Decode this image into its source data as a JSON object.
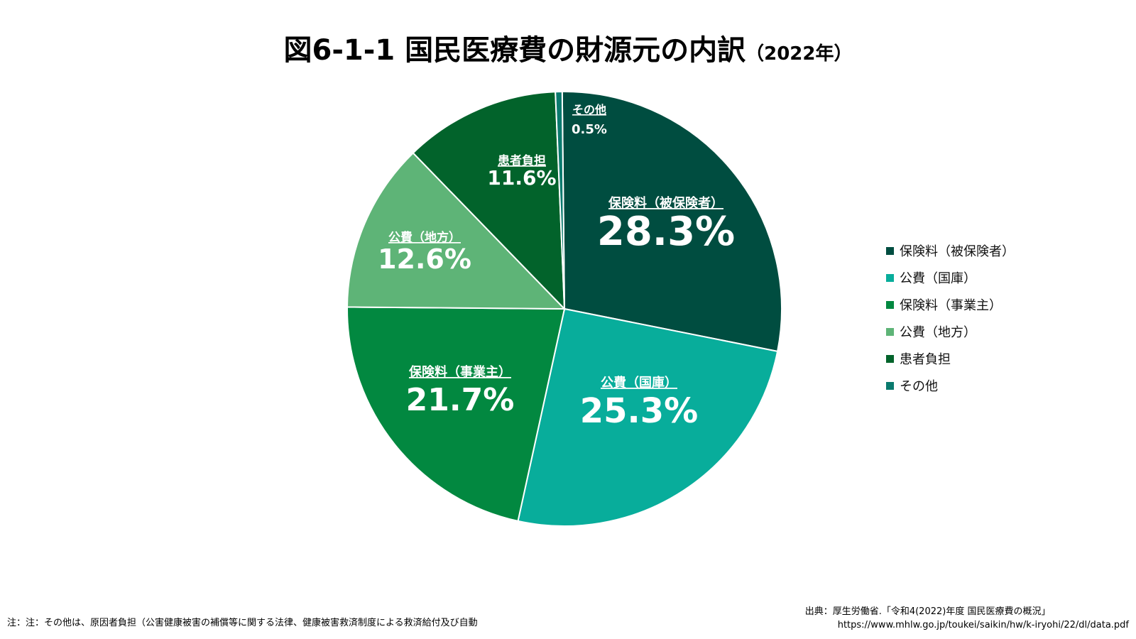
{
  "title": {
    "main": "図6-1-1 国民医療費の財源元の内訳",
    "year": "（2022年）"
  },
  "chart_data": {
    "type": "pie",
    "title": "図6-1-1 国民医療費の財源元の内訳（2022年）",
    "slices": [
      {
        "name": "保険料（被保険者）",
        "label": "保険料（被保険者）",
        "value": 28.3,
        "value_label": "28.3%",
        "color": "#004d40"
      },
      {
        "name": "公費（国庫）",
        "label": "公費（国庫）",
        "value": 25.3,
        "value_label": "25.3%",
        "color": "#08ad9b"
      },
      {
        "name": "保険料（事業主）",
        "label": "保険料（事業主）",
        "value": 21.7,
        "value_label": "21.7%",
        "color": "#028840"
      },
      {
        "name": "公費（地方）",
        "label": "公費（地方）",
        "value": 12.6,
        "value_label": "12.6%",
        "color": "#5eb477"
      },
      {
        "name": "患者負担",
        "label": "患者負担",
        "value": 11.6,
        "value_label": "11.6%",
        "color": "#02632b"
      },
      {
        "name": "その他",
        "label": "その他",
        "value": 0.5,
        "value_label": "0.5%",
        "color": "#0a7a6e"
      }
    ],
    "legend_position": "right"
  },
  "note": "注：注：その他は、原因者負担（公害健康被害の補償等に関する法律、健康被害救済制度による救済給付及び自動",
  "source": {
    "line1": "出典：厚生労働省.「令和4(2022)年度 国民医療費の概況」",
    "url": "https://www.mhlw.go.jp/toukei/saikin/hw/k-iryohi/22/dl/data.pdf"
  }
}
